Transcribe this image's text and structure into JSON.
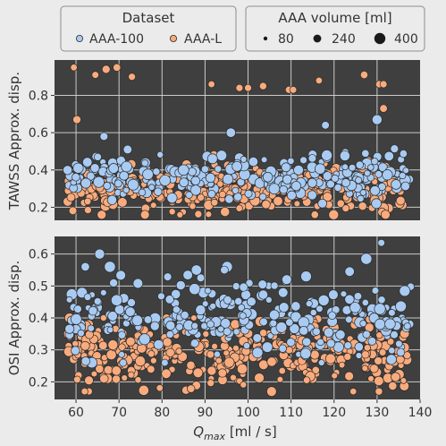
{
  "legend": {
    "dataset_title": "Dataset",
    "volume_title": "AAA volume [ml]",
    "datasets": [
      {
        "label": "AAA-100",
        "color": "#a9cbf2"
      },
      {
        "label": "AAA-L",
        "color": "#f9ab7d"
      }
    ],
    "sizes": [
      {
        "label": "80",
        "volume": 80
      },
      {
        "label": "240",
        "volume": 240
      },
      {
        "label": "400",
        "volume": 400
      }
    ]
  },
  "colors": {
    "panel_background": "#3f3f3f",
    "page_background": "#ebebeb",
    "marker_edge": "#2b2b2b",
    "aaa100": "#a9cbf2",
    "aaal": "#f9ab7d"
  },
  "chart_data": [
    {
      "type": "scatter",
      "ylabel": "TAWSS Approx. disp.",
      "xlabel": "",
      "xlim": [
        55,
        140
      ],
      "ylim": [
        0.13,
        0.99
      ],
      "y_ticks": [
        0.2,
        0.4,
        0.6,
        0.8
      ],
      "y_tick_labels": [
        "0.2",
        "0.4",
        "0.6",
        "0.8"
      ],
      "grid": true,
      "series": [
        {
          "name": "AAA-100",
          "point_count_estimate": 280,
          "x_range": [
            58,
            138
          ],
          "y_center": 0.36,
          "y_spread": 0.06,
          "y_range": [
            0.22,
            0.68
          ],
          "volume_range": [
            60,
            400
          ],
          "sample_points": [
            {
              "x": 60.5,
              "y": 0.41,
              "volume": 320
            },
            {
              "x": 66.5,
              "y": 0.58,
              "volume": 150
            },
            {
              "x": 72,
              "y": 0.51,
              "volume": 200
            },
            {
              "x": 96,
              "y": 0.6,
              "volume": 260
            },
            {
              "x": 118,
              "y": 0.64,
              "volume": 140
            },
            {
              "x": 130,
              "y": 0.67,
              "volume": 300
            },
            {
              "x": 85,
              "y": 0.4,
              "volume": 360
            }
          ]
        },
        {
          "name": "AAA-L",
          "point_count_estimate": 380,
          "x_range": [
            58,
            137
          ],
          "y_center": 0.29,
          "y_spread": 0.06,
          "y_range": [
            0.16,
            0.95
          ],
          "volume_range": [
            60,
            320
          ],
          "sample_points": [
            {
              "x": 59.5,
              "y": 0.95,
              "volume": 90
            },
            {
              "x": 60.2,
              "y": 0.67,
              "volume": 160
            },
            {
              "x": 64.5,
              "y": 0.91,
              "volume": 100
            },
            {
              "x": 67,
              "y": 0.94,
              "volume": 160
            },
            {
              "x": 69.5,
              "y": 0.95,
              "volume": 130
            },
            {
              "x": 73,
              "y": 0.9,
              "volume": 110
            },
            {
              "x": 91.5,
              "y": 0.86,
              "volume": 90
            },
            {
              "x": 98,
              "y": 0.84,
              "volume": 110
            },
            {
              "x": 100,
              "y": 0.84,
              "volume": 110
            },
            {
              "x": 103.5,
              "y": 0.85,
              "volume": 120
            },
            {
              "x": 109.5,
              "y": 0.83,
              "volume": 110
            },
            {
              "x": 110.5,
              "y": 0.83,
              "volume": 100
            },
            {
              "x": 116.5,
              "y": 0.88,
              "volume": 90
            },
            {
              "x": 127,
              "y": 0.91,
              "volume": 130
            },
            {
              "x": 130.5,
              "y": 0.86,
              "volume": 110
            },
            {
              "x": 131.5,
              "y": 0.86,
              "volume": 110
            },
            {
              "x": 131.5,
              "y": 0.73,
              "volume": 140
            }
          ]
        }
      ]
    },
    {
      "type": "scatter",
      "ylabel": "OSI Approx. disp.",
      "xlabel": "Q_max [ml / s]",
      "xlim": [
        55,
        140
      ],
      "ylim": [
        0.145,
        0.655
      ],
      "x_ticks": [
        60,
        70,
        80,
        90,
        100,
        110,
        120,
        130,
        140
      ],
      "x_tick_labels": [
        "60",
        "70",
        "80",
        "90",
        "100",
        "110",
        "120",
        "130",
        "140"
      ],
      "y_ticks": [
        0.2,
        0.3,
        0.4,
        0.5,
        0.6
      ],
      "y_tick_labels": [
        "0.2",
        "0.3",
        "0.4",
        "0.5",
        "0.6"
      ],
      "grid": true,
      "series": [
        {
          "name": "AAA-100",
          "point_count_estimate": 280,
          "x_range": [
            58,
            138
          ],
          "y_center": 0.4,
          "y_spread": 0.055,
          "y_range": [
            0.26,
            0.64
          ],
          "volume_range": [
            60,
            400
          ],
          "sample_points": [
            {
              "x": 65.5,
              "y": 0.6,
              "volume": 300
            },
            {
              "x": 88,
              "y": 0.55,
              "volume": 320
            },
            {
              "x": 109,
              "y": 0.52,
              "volume": 280
            },
            {
              "x": 113.5,
              "y": 0.53,
              "volume": 360
            },
            {
              "x": 127.5,
              "y": 0.585,
              "volume": 400
            },
            {
              "x": 131,
              "y": 0.635,
              "volume": 100
            },
            {
              "x": 94.5,
              "y": 0.55,
              "volume": 150
            }
          ]
        },
        {
          "name": "AAA-L",
          "point_count_estimate": 380,
          "x_range": [
            58,
            137
          ],
          "y_center": 0.29,
          "y_spread": 0.05,
          "y_range": [
            0.17,
            0.48
          ],
          "volume_range": [
            60,
            320
          ],
          "sample_points": [
            {
              "x": 66.5,
              "y": 0.21,
              "volume": 200
            },
            {
              "x": 62,
              "y": 0.17,
              "volume": 90
            },
            {
              "x": 120,
              "y": 0.37,
              "volume": 300
            },
            {
              "x": 97,
              "y": 0.38,
              "volume": 260
            }
          ]
        }
      ]
    }
  ]
}
